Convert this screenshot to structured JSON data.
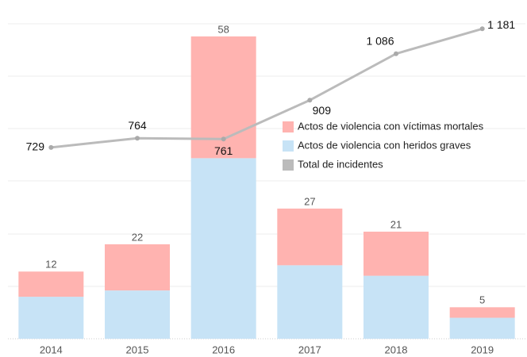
{
  "chart_data": {
    "type": "bar",
    "stacked": true,
    "categories": [
      "2014",
      "2015",
      "2016",
      "2017",
      "2018",
      "2019"
    ],
    "ylim": [
      0,
      150
    ],
    "y2lim": [
      0,
      1200
    ],
    "series": [
      {
        "name": "Actos de violencia con heridos graves",
        "color": "#c7e3f6",
        "values": [
          20,
          23,
          86,
          35,
          30,
          10
        ]
      },
      {
        "name": "Actos de violencia con víctimas mortales",
        "color": "#ffb3b0",
        "values": [
          12,
          22,
          58,
          27,
          21,
          5
        ]
      },
      {
        "name": "Total de incidentes",
        "type": "line",
        "axis": "y2",
        "color": "#bbbbbb",
        "values": [
          729,
          764,
          761,
          909,
          1086,
          1181
        ],
        "value_labels": [
          "729",
          "764",
          "761",
          "909",
          "1 086",
          "1 181"
        ]
      }
    ]
  }
}
